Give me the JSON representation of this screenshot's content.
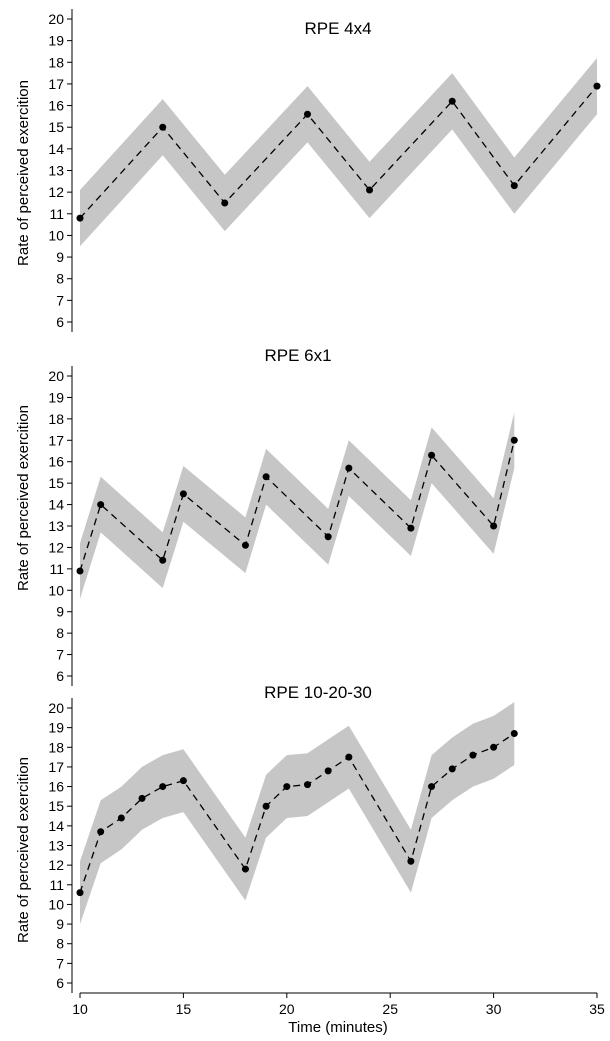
{
  "chart_data": [
    {
      "type": "line",
      "title": "RPE 4x4",
      "xlabel": "",
      "ylabel": "Rate of perceived exercition",
      "ylim": [
        5.5,
        20.5
      ],
      "yticks": [
        6,
        7,
        8,
        9,
        10,
        11,
        12,
        13,
        14,
        15,
        16,
        17,
        18,
        19,
        20
      ],
      "xlim": [
        10,
        35
      ],
      "grid": false,
      "series": [
        {
          "x": [
            10,
            14,
            17,
            21,
            24,
            28,
            31,
            35
          ],
          "y": [
            10.8,
            15.0,
            11.5,
            15.6,
            12.1,
            16.2,
            12.3,
            16.9
          ],
          "lower": [
            9.5,
            13.7,
            10.2,
            14.3,
            10.8,
            14.9,
            11.0,
            15.6
          ],
          "upper": [
            12.1,
            16.3,
            12.8,
            16.9,
            13.4,
            17.5,
            13.6,
            18.2
          ]
        }
      ]
    },
    {
      "type": "line",
      "title": "RPE 6x1",
      "xlabel": "",
      "ylabel": "Rate of perceived exercition",
      "ylim": [
        5.5,
        20.5
      ],
      "yticks": [
        6,
        7,
        8,
        9,
        10,
        11,
        12,
        13,
        14,
        15,
        16,
        17,
        18,
        19,
        20
      ],
      "xlim": [
        10,
        35
      ],
      "grid": false,
      "series": [
        {
          "x": [
            10,
            11,
            14,
            15,
            18,
            19,
            22,
            23,
            26,
            27,
            30,
            31
          ],
          "y": [
            10.9,
            14.0,
            11.4,
            14.5,
            12.1,
            15.3,
            12.5,
            15.7,
            12.9,
            16.3,
            13.0,
            17.0
          ],
          "lower": [
            9.6,
            12.7,
            10.1,
            13.2,
            10.8,
            14.0,
            11.2,
            14.4,
            11.6,
            15.0,
            11.7,
            15.7
          ],
          "upper": [
            12.2,
            15.3,
            12.7,
            15.8,
            13.4,
            16.6,
            13.8,
            17.0,
            14.2,
            17.6,
            14.3,
            18.3
          ]
        }
      ]
    },
    {
      "type": "line",
      "title": "RPE 10-20-30",
      "xlabel": "Time (minutes)",
      "ylabel": "Rate of perceived exercition",
      "ylim": [
        5.5,
        20.5
      ],
      "yticks": [
        6,
        7,
        8,
        9,
        10,
        11,
        12,
        13,
        14,
        15,
        16,
        17,
        18,
        19,
        20
      ],
      "xlim": [
        10,
        35
      ],
      "xticks": [
        10,
        15,
        20,
        25,
        30,
        35
      ],
      "grid": false,
      "series": [
        {
          "x": [
            10,
            11,
            12,
            13,
            14,
            15,
            18,
            19,
            20,
            21,
            22,
            23,
            26,
            27,
            28,
            29,
            30,
            31
          ],
          "y": [
            10.6,
            13.7,
            14.4,
            15.4,
            16.0,
            16.3,
            11.8,
            15.0,
            16.0,
            16.1,
            16.8,
            17.5,
            12.2,
            16.0,
            16.9,
            17.6,
            18.0,
            18.7
          ],
          "lower": [
            9.0,
            12.1,
            12.8,
            13.8,
            14.4,
            14.7,
            10.2,
            13.4,
            14.4,
            14.5,
            15.2,
            15.9,
            10.6,
            14.4,
            15.3,
            16.0,
            16.4,
            17.1
          ],
          "upper": [
            12.2,
            15.3,
            16.0,
            17.0,
            17.6,
            17.9,
            13.4,
            16.6,
            17.6,
            17.7,
            18.4,
            19.1,
            13.8,
            17.6,
            18.5,
            19.2,
            19.6,
            20.3
          ]
        }
      ]
    }
  ]
}
